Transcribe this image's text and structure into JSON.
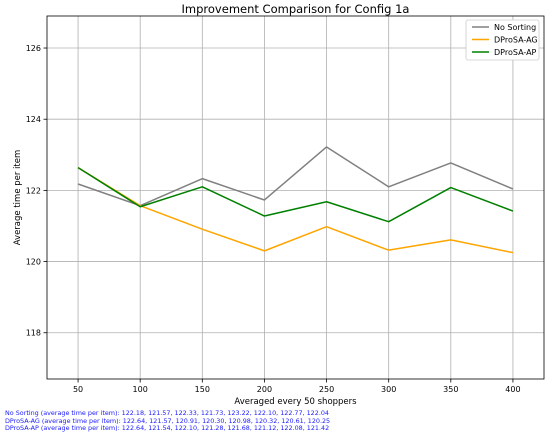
{
  "chart_data": {
    "type": "line",
    "title": "Improvement Comparison for Config 1a",
    "xlabel": "Averaged every 50 shoppers",
    "ylabel": "Average time per item",
    "x": [
      50,
      100,
      150,
      200,
      250,
      300,
      350,
      400
    ],
    "xlim": [
      25,
      425
    ],
    "ylim": [
      116.7,
      126.9
    ],
    "yticks": [
      118,
      120,
      122,
      124,
      126
    ],
    "xticks": [
      50,
      100,
      150,
      200,
      250,
      300,
      350,
      400
    ],
    "grid": true,
    "legend_position": "top-right",
    "series": [
      {
        "name": "No Sorting",
        "color": "#808080",
        "values": [
          122.18,
          121.57,
          122.33,
          121.73,
          123.22,
          122.1,
          122.77,
          122.04
        ]
      },
      {
        "name": "DProSA-AG",
        "color": "#ffa500",
        "values": [
          122.64,
          121.57,
          120.91,
          120.3,
          120.98,
          120.32,
          120.61,
          120.25
        ]
      },
      {
        "name": "DProSA-AP",
        "color": "#008000",
        "values": [
          122.64,
          121.54,
          122.1,
          121.28,
          121.68,
          121.12,
          122.08,
          121.42
        ]
      }
    ]
  },
  "notes": [
    "No Sorting (average time per item): 122.18, 121.57, 122.33, 121.73, 123.22, 122.10, 122.77, 122.04",
    "DProSA-AG (average time per item): 122.64, 121.57, 120.91, 120.30, 120.98, 120.32, 120.61, 120.25",
    "DProSA-AP (average time per item): 122.64, 121.54, 122.10, 121.28, 121.68, 121.12, 122.08, 121.42"
  ]
}
